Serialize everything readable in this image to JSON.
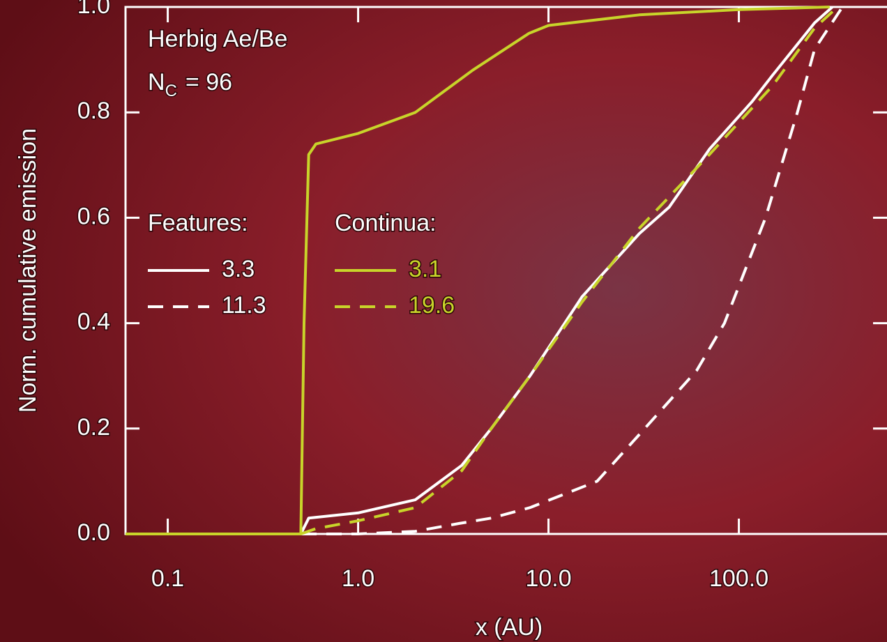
{
  "chart_data": {
    "type": "line",
    "xlabel": "x (AU)",
    "ylabel": "Norm. cumulative emission",
    "annotations": [
      "Herbig Ae/Be",
      {
        "label": "N",
        "subscript": "C",
        "text": "= 96"
      }
    ],
    "legend_titles": [
      "Features:",
      "Continua:"
    ],
    "xscale": "log",
    "xlim": [
      0.06,
      600
    ],
    "ylim": [
      0,
      1
    ],
    "xticks": [
      0.1,
      {
        "value": 1,
        "label": "1.0"
      },
      {
        "value": 10,
        "label": "10.0"
      },
      {
        "value": 100,
        "label": "100.0"
      }
    ],
    "yticks": [
      {
        "value": 0,
        "label": "0.0"
      },
      0.2,
      0.4,
      0.6,
      0.8,
      {
        "value": 1,
        "label": "1.0"
      }
    ],
    "series": [
      {
        "name": "3.3",
        "color": "#ffffff",
        "dash": false,
        "x": [
          0.06,
          0.5,
          0.55,
          1,
          2,
          3.5,
          5,
          8,
          15,
          30,
          43,
          70,
          117,
          150,
          250,
          310
        ],
        "values": [
          0,
          0,
          0.03,
          0.04,
          0.065,
          0.13,
          0.2,
          0.3,
          0.45,
          0.57,
          0.62,
          0.73,
          0.82,
          0.87,
          0.97,
          1.0
        ]
      },
      {
        "name": "11.3",
        "color": "#ffffff",
        "dash": true,
        "x": [
          0.06,
          1,
          2,
          3.4,
          5,
          8,
          18,
          32,
          60,
          84,
          138,
          203,
          250,
          350
        ],
        "values": [
          0,
          0,
          0.005,
          0.02,
          0.03,
          0.05,
          0.1,
          0.2,
          0.31,
          0.4,
          0.6,
          0.8,
          0.92,
          1.0
        ]
      },
      {
        "name": "3.1",
        "color": "#c8d42a",
        "dash": false,
        "x": [
          0.06,
          0.5,
          0.52,
          0.55,
          0.6,
          1,
          2,
          4,
          7.9,
          10,
          30,
          100,
          300
        ],
        "values": [
          0,
          0,
          0.4,
          0.72,
          0.74,
          0.76,
          0.8,
          0.88,
          0.95,
          0.965,
          0.985,
          0.995,
          1.0
        ]
      },
      {
        "name": "19.6",
        "color": "#c8d42a",
        "dash": true,
        "x": [
          0.5,
          0.6,
          1,
          2,
          3.5,
          5,
          8,
          15,
          30,
          70,
          150,
          250,
          330
        ],
        "values": [
          0,
          0.01,
          0.025,
          0.05,
          0.12,
          0.2,
          0.3,
          0.44,
          0.58,
          0.72,
          0.85,
          0.96,
          1.0
        ]
      }
    ]
  }
}
